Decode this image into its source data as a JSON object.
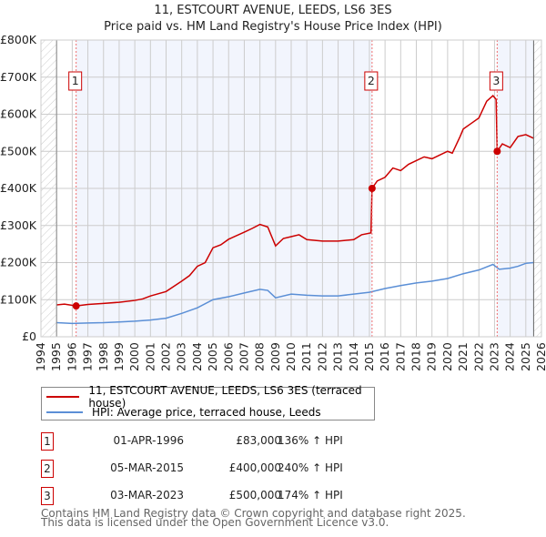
{
  "chart_data": {
    "type": "line",
    "title": "11, ESTCOURT AVENUE, LEEDS, LS6 3ES",
    "subtitle": "Price paid vs. HM Land Registry's House Price Index (HPI)",
    "xlim": [
      1994,
      2026
    ],
    "ylim": [
      0,
      800000
    ],
    "yticks": [
      0,
      100000,
      200000,
      300000,
      400000,
      500000,
      600000,
      700000,
      800000
    ],
    "ytick_labels": [
      "£0",
      "£100K",
      "£200K",
      "£300K",
      "£400K",
      "£500K",
      "£600K",
      "£700K",
      "£800K"
    ],
    "xticks": [
      1994,
      1995,
      1996,
      1997,
      1998,
      1999,
      2000,
      2001,
      2002,
      2003,
      2004,
      2005,
      2006,
      2007,
      2008,
      2009,
      2010,
      2011,
      2012,
      2013,
      2014,
      2015,
      2016,
      2017,
      2018,
      2019,
      2020,
      2021,
      2022,
      2023,
      2024,
      2025,
      2026
    ],
    "grid": true,
    "data_range": [
      1995,
      2025.5
    ],
    "shaded_ranges": [
      [
        1996.25,
        2015.17
      ],
      [
        2023.17,
        2025.5
      ]
    ],
    "series": [
      {
        "name": "11, ESTCOURT AVENUE, LEEDS, LS6 3ES (terraced house)",
        "color": "#cc0000",
        "x": [
          1995,
          1995.5,
          1996.25,
          1997,
          1998,
          1999,
          2000,
          2000.5,
          2001,
          2002,
          2003,
          2003.5,
          2004,
          2004.5,
          2005,
          2005.5,
          2006,
          2007,
          2007.5,
          2008,
          2008.5,
          2009,
          2009.5,
          2010,
          2010.5,
          2011,
          2012,
          2013,
          2014,
          2014.5,
          2015.1,
          2015.17,
          2015.5,
          2016,
          2016.5,
          2017,
          2017.5,
          2018,
          2018.5,
          2019,
          2019.5,
          2020,
          2020.3,
          2020.8,
          2021,
          2021.5,
          2022,
          2022.5,
          2022.9,
          2023.1,
          2023.17,
          2023.5,
          2024,
          2024.5,
          2025,
          2025.5
        ],
        "y": [
          86000,
          88000,
          83000,
          87000,
          90000,
          93000,
          98000,
          102000,
          110000,
          122000,
          150000,
          165000,
          190000,
          200000,
          240000,
          248000,
          263000,
          282000,
          292000,
          303000,
          296000,
          245000,
          265000,
          270000,
          275000,
          262000,
          258000,
          258000,
          262000,
          275000,
          280000,
          400000,
          420000,
          430000,
          455000,
          448000,
          465000,
          475000,
          485000,
          480000,
          490000,
          500000,
          495000,
          540000,
          560000,
          575000,
          590000,
          635000,
          650000,
          640000,
          500000,
          520000,
          510000,
          540000,
          545000,
          535000
        ]
      },
      {
        "name": "HPI: Average price, terraced house, Leeds",
        "color": "#5b8fd6",
        "x": [
          1995,
          1996,
          1997,
          1998,
          1999,
          2000,
          2001,
          2002,
          2003,
          2004,
          2005,
          2006,
          2007,
          2008,
          2008.5,
          2009,
          2010,
          2011,
          2012,
          2013,
          2014,
          2015,
          2016,
          2017,
          2018,
          2019,
          2020,
          2021,
          2022,
          2022.9,
          2023.3,
          2024,
          2024.5,
          2025,
          2025.5
        ],
        "y": [
          38000,
          36000,
          37000,
          38000,
          40000,
          42000,
          45000,
          50000,
          63000,
          78000,
          100000,
          108000,
          118000,
          128000,
          125000,
          105000,
          115000,
          112000,
          110000,
          110000,
          115000,
          120000,
          130000,
          138000,
          145000,
          150000,
          157000,
          170000,
          180000,
          195000,
          182000,
          185000,
          190000,
          198000,
          200000
        ]
      }
    ],
    "sales": [
      {
        "label": "1",
        "x": 1996.25,
        "y": 83000,
        "date": "01-APR-1996",
        "price": "£83,000",
        "hpi": "136% ↑ HPI"
      },
      {
        "label": "2",
        "x": 2015.17,
        "y": 400000,
        "date": "05-MAR-2015",
        "price": "£400,000",
        "hpi": "240% ↑ HPI"
      },
      {
        "label": "3",
        "x": 2023.17,
        "y": 500000,
        "date": "03-MAR-2023",
        "price": "£500,000",
        "hpi": "174% ↑ HPI"
      }
    ]
  },
  "legend": {
    "price_label": "11, ESTCOURT AVENUE, LEEDS, LS6 3ES (terraced house)",
    "hpi_label": "HPI: Average price, terraced house, Leeds"
  },
  "footer": {
    "line1": "Contains HM Land Registry data © Crown copyright and database right 2025.",
    "line2": "This data is licensed under the Open Government Licence v3.0."
  }
}
